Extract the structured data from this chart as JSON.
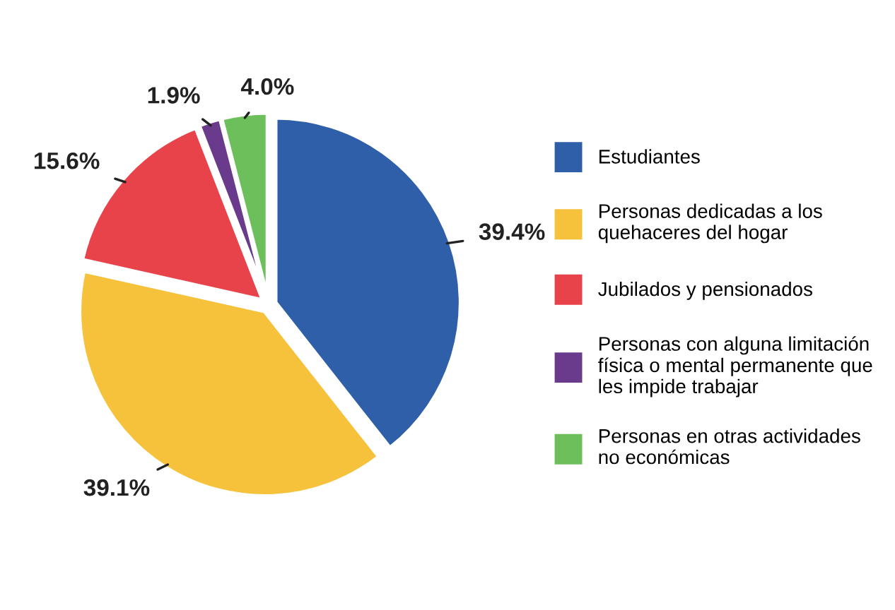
{
  "chart_data": {
    "type": "pie",
    "categories": [
      "Estudiantes",
      "Personas dedicadas a los\nquehaceres del hogar",
      "Jubilados y pensionados",
      "Personas con alguna limitación\nfísica o mental permanente que\nles impide trabajar",
      "Personas en otras actividades\nno económicas"
    ],
    "values": [
      39.4,
      39.1,
      15.6,
      1.9,
      4.0
    ],
    "value_labels": [
      "39.4%",
      "39.1%",
      "15.6%",
      "1.9%",
      "4.0%"
    ],
    "colors": [
      "#2e5fa8",
      "#f6c23c",
      "#e8434b",
      "#6a3a8c",
      "#6cbf5a"
    ],
    "legend": "right"
  }
}
